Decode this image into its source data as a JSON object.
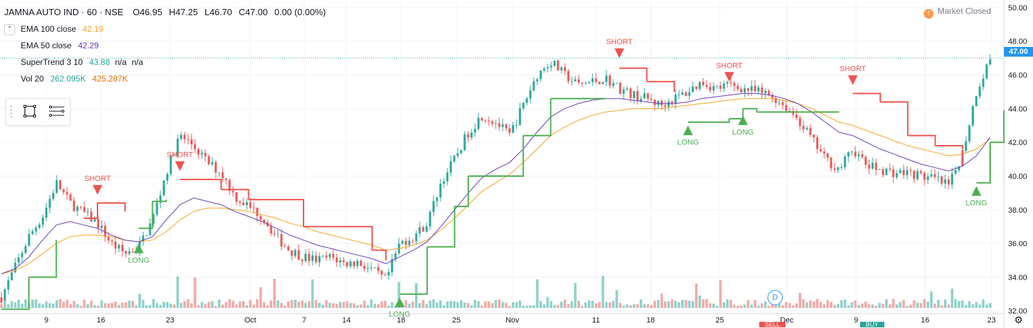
{
  "header": {
    "symbol": "JAMNA AUTO IND · 60 · NSE",
    "ohlc": {
      "o": "O46.95",
      "h": "H47.25",
      "l": "L46.70",
      "c": "C47.00",
      "chg": "0.00 (0.00%)"
    }
  },
  "legend": {
    "ema100": {
      "label": "EMA 100 close",
      "value": "42.19",
      "color": "#f7a21b"
    },
    "ema50": {
      "label": "EMA 50 close",
      "value": "42.29",
      "color": "#673ab7"
    },
    "supertrend": {
      "label": "SuperTrend 3 10",
      "value": "43.88",
      "na1": "n/a",
      "na2": "n/a",
      "color": "#26a69a"
    },
    "vol": {
      "label": "Vol 20",
      "value1": "262.095K",
      "value2": "425.287K",
      "color1": "#26a69a",
      "color2": "#ef6c00"
    }
  },
  "status": {
    "market": "Market Closed",
    "icon": "!"
  },
  "last_price_tag": "47.00",
  "d_badge": "D",
  "bottom_tags": {
    "sell": "SELL",
    "buy": "BUY"
  },
  "chart_data": {
    "type": "candlestick",
    "ylim": [
      31.6,
      50.2
    ],
    "y_ticks": [
      "32.00",
      "34.00",
      "36.00",
      "38.00",
      "40.00",
      "42.00",
      "44.00",
      "46.00",
      "48.00",
      "50.00"
    ],
    "x_ticks": [
      "9",
      "16",
      "23",
      "Oct",
      "7",
      "14",
      "18",
      "25",
      "Nov",
      "11",
      "18",
      "25",
      "Dec",
      "9",
      "16",
      "23"
    ],
    "colors": {
      "up": "#26a69a",
      "down": "#ef5350",
      "supertrend_up": "#4caf50",
      "supertrend_down": "#ef5350",
      "ema50": "#673ab7",
      "ema100": "#f7a21b",
      "volume_up": "#8fd1c9",
      "volume_down": "#f4a9a6"
    },
    "price_path": [
      32.8,
      34.6,
      36.4,
      37.6,
      39.6,
      38.4,
      37.8,
      37.2,
      36.0,
      35.4,
      35.8,
      37.4,
      40.2,
      42.4,
      41.8,
      40.8,
      40.2,
      38.8,
      38.2,
      37.6,
      36.4,
      35.6,
      35.2,
      35.0,
      35.2,
      34.8,
      34.9,
      34.4,
      33.8,
      36.0,
      36.4,
      37.2,
      39.6,
      41.0,
      42.6,
      43.6,
      43.2,
      42.4,
      44.2,
      46.0,
      46.8,
      46.0,
      45.4,
      45.6,
      45.8,
      45.2,
      44.8,
      44.6,
      44.2,
      44.6,
      45.0,
      45.6,
      45.2,
      45.4,
      45.2,
      45.0,
      44.8,
      44.2,
      43.4,
      42.2,
      41.0,
      40.4,
      41.6,
      40.6,
      40.4,
      40.2,
      40.2,
      40.0,
      39.8,
      39.4,
      41.4,
      45.0,
      47.0
    ],
    "supertrend": [
      {
        "x": 0,
        "y": 32.1,
        "trend": "up"
      },
      {
        "x": 2,
        "y": 34.0,
        "trend": "up"
      },
      {
        "x": 4,
        "y": 36.2,
        "trend": "up"
      },
      {
        "x": 6,
        "y": 37.5,
        "trend": "down"
      },
      {
        "x": 7,
        "y": 38.4,
        "trend": "down"
      },
      {
        "x": 9,
        "y": 37.9,
        "trend": "down"
      },
      {
        "x": 10,
        "y": 36.9,
        "trend": "up"
      },
      {
        "x": 11,
        "y": 38.5,
        "trend": "up"
      },
      {
        "x": 12,
        "y": 38.6,
        "trend": "up"
      },
      {
        "x": 13,
        "y": 39.8,
        "trend": "down"
      },
      {
        "x": 16,
        "y": 39.2,
        "trend": "down"
      },
      {
        "x": 18,
        "y": 38.6,
        "trend": "down"
      },
      {
        "x": 22,
        "y": 37.0,
        "trend": "down"
      },
      {
        "x": 27,
        "y": 35.6,
        "trend": "down"
      },
      {
        "x": 28,
        "y": 35.0,
        "trend": "down"
      },
      {
        "x": 29,
        "y": 33.0,
        "trend": "up"
      },
      {
        "x": 31,
        "y": 35.8,
        "trend": "up"
      },
      {
        "x": 33,
        "y": 38.2,
        "trend": "up"
      },
      {
        "x": 34,
        "y": 40.0,
        "trend": "up"
      },
      {
        "x": 38,
        "y": 42.4,
        "trend": "up"
      },
      {
        "x": 40,
        "y": 44.6,
        "trend": "up"
      },
      {
        "x": 44,
        "y": 44.6,
        "trend": "up"
      },
      {
        "x": 45,
        "y": 46.4,
        "trend": "down"
      },
      {
        "x": 47,
        "y": 45.6,
        "trend": "down"
      },
      {
        "x": 49,
        "y": 45.0,
        "trend": "down"
      },
      {
        "x": 50,
        "y": 43.2,
        "trend": "up"
      },
      {
        "x": 53,
        "y": 43.4,
        "trend": "up"
      },
      {
        "x": 54,
        "y": 44.0,
        "trend": "up"
      },
      {
        "x": 55,
        "y": 43.8,
        "trend": "up"
      },
      {
        "x": 61,
        "y": 43.8,
        "trend": "up"
      },
      {
        "x": 62,
        "y": 44.9,
        "trend": "down"
      },
      {
        "x": 64,
        "y": 44.4,
        "trend": "down"
      },
      {
        "x": 66,
        "y": 42.4,
        "trend": "down"
      },
      {
        "x": 68,
        "y": 41.8,
        "trend": "down"
      },
      {
        "x": 70,
        "y": 40.6,
        "trend": "down"
      },
      {
        "x": 71,
        "y": 39.6,
        "trend": "up"
      },
      {
        "x": 72,
        "y": 42.0,
        "trend": "up"
      },
      {
        "x": 73,
        "y": 43.9,
        "trend": "up"
      }
    ],
    "ema50": [
      34.2,
      34.5,
      35.2,
      36.2,
      37.1,
      37.3,
      37.1,
      36.9,
      36.5,
      36.2,
      36.1,
      36.4,
      37.4,
      38.3,
      38.7,
      38.5,
      38.3,
      37.9,
      37.6,
      37.3,
      36.9,
      36.5,
      36.2,
      35.9,
      35.7,
      35.5,
      35.3,
      35.1,
      34.8,
      35.2,
      35.6,
      36.1,
      37.0,
      38.0,
      39.0,
      39.9,
      40.4,
      40.8,
      41.6,
      42.6,
      43.5,
      44.0,
      44.3,
      44.5,
      44.6,
      44.6,
      44.5,
      44.4,
      44.3,
      44.3,
      44.4,
      44.6,
      44.7,
      44.8,
      44.9,
      44.9,
      44.8,
      44.6,
      44.3,
      43.8,
      43.2,
      42.6,
      42.4,
      42.0,
      41.6,
      41.3,
      41.0,
      40.7,
      40.5,
      40.3,
      40.6,
      41.2,
      42.3
    ],
    "ema100": [
      34.2,
      34.4,
      34.8,
      35.4,
      36.0,
      36.4,
      36.5,
      36.5,
      36.4,
      36.2,
      36.1,
      36.2,
      36.7,
      37.4,
      37.9,
      38.1,
      38.1,
      38.0,
      37.9,
      37.7,
      37.5,
      37.2,
      37.0,
      36.7,
      36.5,
      36.3,
      36.1,
      35.9,
      35.6,
      35.7,
      35.9,
      36.2,
      36.8,
      37.5,
      38.3,
      39.1,
      39.6,
      40.1,
      40.8,
      41.6,
      42.4,
      42.9,
      43.3,
      43.6,
      43.8,
      43.9,
      44.0,
      44.0,
      44.0,
      44.1,
      44.2,
      44.3,
      44.4,
      44.5,
      44.6,
      44.6,
      44.6,
      44.5,
      44.3,
      44.0,
      43.6,
      43.2,
      43.0,
      42.7,
      42.4,
      42.1,
      41.8,
      41.6,
      41.4,
      41.2,
      41.3,
      41.6,
      42.2
    ],
    "signals": [
      {
        "type": "SHORT",
        "x": 7,
        "y": 38.9
      },
      {
        "type": "LONG",
        "x": 10,
        "y": 36.0
      },
      {
        "type": "SHORT",
        "x": 13,
        "y": 40.3
      },
      {
        "type": "LONG",
        "x": 29,
        "y": 32.8
      },
      {
        "type": "SHORT",
        "x": 45,
        "y": 47.0
      },
      {
        "type": "LONG",
        "x": 50,
        "y": 43.0
      },
      {
        "type": "SHORT",
        "x": 53,
        "y": 45.6
      },
      {
        "type": "LONG",
        "x": 54,
        "y": 43.6
      },
      {
        "type": "SHORT",
        "x": 62,
        "y": 45.4
      },
      {
        "type": "LONG",
        "x": 71,
        "y": 39.4
      }
    ]
  }
}
